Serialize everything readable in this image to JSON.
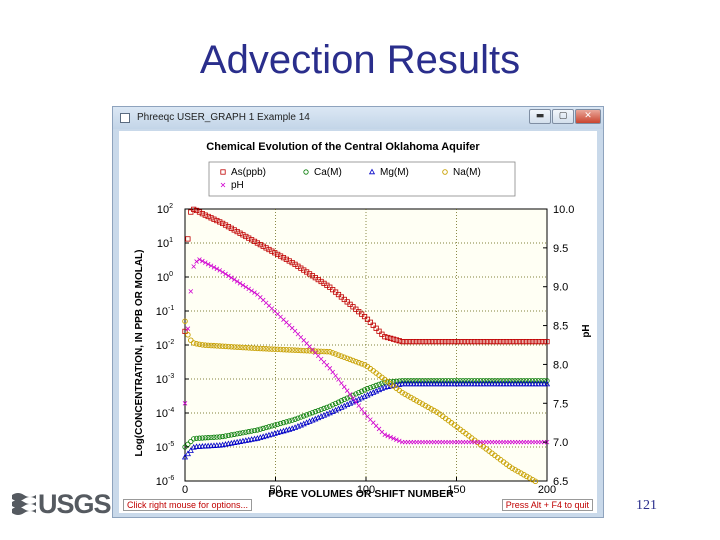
{
  "slide": {
    "title": "Advection Results",
    "page_number": "121",
    "logo_text": "USGS"
  },
  "window": {
    "title": "Phreeqc USER_GRAPH 1 Example 14",
    "min_glyph": "▬",
    "max_glyph": "▢",
    "close_glyph": "✕"
  },
  "status": {
    "left": "Click right mouse for options...",
    "right": "Press Alt + F4 to quit"
  },
  "colors": {
    "As": "#c00000",
    "Ca": "#007a00",
    "Mg": "#0000c8",
    "Na": "#c8a000",
    "pH": "#d000d0",
    "grid": "#5a5a00"
  },
  "chart_data": {
    "type": "scatter",
    "title": "Chemical Evolution of the Central Oklahoma Aquifer",
    "xlabel": "PORE VOLUMES OR SHIFT NUMBER",
    "ylabel": "Log(CONCENTRATION, IN PPB OR MOLAL)",
    "y2label": "pH",
    "xlim": [
      0,
      200
    ],
    "ylim": [
      -6,
      2
    ],
    "y2lim": [
      6.5,
      10.0
    ],
    "xticks": [
      "0",
      "50",
      "100",
      "150",
      "200"
    ],
    "yticks": [
      {
        "base": "10",
        "exp": "2"
      },
      {
        "base": "10",
        "exp": "1"
      },
      {
        "base": "10",
        "exp": "0"
      },
      {
        "base": "10",
        "exp": "-1"
      },
      {
        "base": "10",
        "exp": "-2"
      },
      {
        "base": "10",
        "exp": "-3"
      },
      {
        "base": "10",
        "exp": "-4"
      },
      {
        "base": "10",
        "exp": "-5"
      },
      {
        "base": "10",
        "exp": "-6"
      }
    ],
    "y2ticks": [
      "10.0",
      "9.5",
      "9.0",
      "8.5",
      "8.0",
      "7.5",
      "7.0",
      "6.5"
    ],
    "grid": true,
    "legend_position": "top",
    "series": [
      {
        "name": "As(ppb)",
        "marker": "square",
        "axis": "left",
        "x": [
          0,
          1,
          2,
          3,
          5,
          10,
          20,
          40,
          60,
          80,
          100,
          110,
          120,
          150,
          200
        ],
        "y": [
          -1.6,
          0.4,
          1.6,
          1.9,
          2.0,
          1.85,
          1.6,
          1.0,
          0.4,
          -0.3,
          -1.2,
          -1.75,
          -1.9,
          -1.9,
          -1.9
        ]
      },
      {
        "name": "Ca(M)",
        "marker": "circle",
        "axis": "left",
        "x": [
          0,
          5,
          20,
          40,
          60,
          80,
          100,
          110,
          120,
          130,
          150,
          200
        ],
        "y": [
          -5.0,
          -4.75,
          -4.7,
          -4.5,
          -4.2,
          -3.8,
          -3.3,
          -3.1,
          -3.05,
          -3.05,
          -3.05,
          -3.05
        ]
      },
      {
        "name": "Mg(M)",
        "marker": "triangle",
        "axis": "left",
        "x": [
          0,
          5,
          20,
          40,
          60,
          80,
          100,
          110,
          120,
          130,
          150,
          200
        ],
        "y": [
          -5.3,
          -5.0,
          -4.95,
          -4.75,
          -4.45,
          -4.0,
          -3.5,
          -3.25,
          -3.15,
          -3.15,
          -3.15,
          -3.15
        ]
      },
      {
        "name": "Na(M)",
        "marker": "circle-open",
        "axis": "left",
        "x": [
          0,
          2,
          5,
          10,
          40,
          80,
          100,
          110,
          120,
          140,
          160,
          180,
          200
        ],
        "y": [
          -1.3,
          -1.8,
          -1.95,
          -2.0,
          -2.1,
          -2.2,
          -2.6,
          -3.0,
          -3.4,
          -4.0,
          -4.8,
          -5.6,
          -6.2
        ]
      },
      {
        "name": "pH",
        "marker": "x",
        "axis": "right",
        "x": [
          0,
          2,
          5,
          8,
          12,
          20,
          40,
          60,
          80,
          100,
          110,
          120,
          150,
          200
        ],
        "y": [
          7.5,
          8.7,
          9.3,
          9.35,
          9.3,
          9.2,
          8.9,
          8.45,
          7.95,
          7.35,
          7.1,
          7.0,
          7.0,
          7.0
        ]
      }
    ]
  }
}
